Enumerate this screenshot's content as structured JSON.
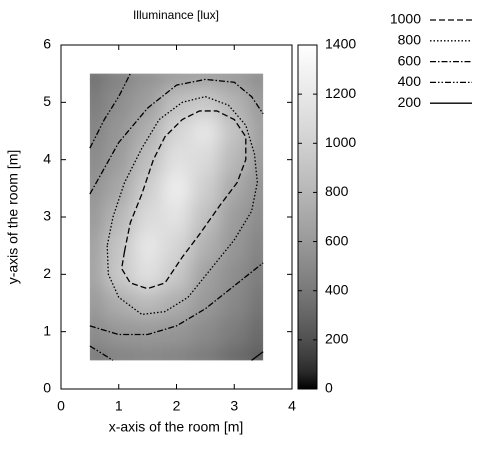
{
  "chart_data": {
    "type": "contour",
    "title": "Illuminance [lux]",
    "x_label": "x-axis of the room [m]",
    "y_label": "y-axis of the room [m]",
    "xlim": [
      0,
      4
    ],
    "xticks": [
      0,
      1,
      2,
      3,
      4
    ],
    "ylim": [
      0,
      6
    ],
    "yticks": [
      0,
      1,
      2,
      3,
      4,
      5,
      6
    ],
    "zlim": [
      0,
      1400
    ],
    "zticks": [
      0,
      200,
      400,
      600,
      800,
      1000,
      1200,
      1400
    ],
    "heatmap": {
      "x": [
        0.5,
        1,
        1.5,
        2,
        2.5,
        3,
        3.5
      ],
      "y": [
        0.5,
        1,
        1.5,
        2,
        2.5,
        3,
        3.5,
        4,
        4.5,
        5,
        5.5
      ],
      "z": [
        [
          410,
          460,
          480,
          460,
          410,
          330,
          250
        ],
        [
          510,
          580,
          600,
          580,
          510,
          420,
          320
        ],
        [
          600,
          730,
          830,
          730,
          600,
          490,
          370
        ],
        [
          650,
          930,
          1130,
          930,
          650,
          530,
          420
        ],
        [
          640,
          910,
          1190,
          1040,
          760,
          580,
          460
        ],
        [
          590,
          800,
          1080,
          1150,
          870,
          620,
          510
        ],
        [
          550,
          690,
          970,
          1250,
          980,
          700,
          550
        ],
        [
          500,
          620,
          860,
          1140,
          1080,
          810,
          600
        ],
        [
          460,
          580,
          750,
          1030,
          1190,
          890,
          630
        ],
        [
          410,
          530,
          640,
          870,
          940,
          780,
          600
        ],
        [
          360,
          470,
          560,
          630,
          650,
          610,
          530
        ]
      ]
    },
    "legend": "outside-top-right",
    "series": [
      {
        "name": "1000",
        "color": "#000000",
        "dash": "6,3",
        "x": [
          1.1,
          1.05,
          1.2,
          1.5,
          1.8,
          2.1,
          2.4,
          2.75,
          3.05,
          3.2,
          3.2,
          3.0,
          2.7,
          2.4,
          2.1,
          1.8,
          1.6,
          1.4,
          1.2,
          1.1
        ],
        "y": [
          2.4,
          2.1,
          1.85,
          1.75,
          1.85,
          2.3,
          2.7,
          3.2,
          3.6,
          4.0,
          4.4,
          4.7,
          4.85,
          4.85,
          4.7,
          4.4,
          4.0,
          3.4,
          2.9,
          2.4
        ]
      },
      {
        "name": "800",
        "color": "#000000",
        "dash": "1.5,2",
        "x": [
          0.8,
          0.82,
          1.0,
          1.4,
          1.8,
          2.2,
          2.6,
          3.0,
          3.3,
          3.4,
          3.35,
          3.2,
          2.9,
          2.5,
          2.1,
          1.7,
          1.4,
          1.1,
          0.9,
          0.8
        ],
        "y": [
          2.5,
          2.0,
          1.6,
          1.3,
          1.35,
          1.6,
          2.1,
          2.6,
          3.1,
          3.6,
          4.1,
          4.6,
          4.95,
          5.1,
          5.0,
          4.7,
          4.2,
          3.6,
          3.0,
          2.5
        ]
      },
      {
        "name": "600",
        "color": "#000000",
        "dash": "6,2,1.5,2",
        "x": [
          0.5,
          1.0,
          1.5,
          2.0,
          2.5,
          3.0,
          3.5,
          null,
          0.5,
          1.0,
          1.5,
          2.0,
          2.5,
          3.0,
          3.3,
          3.5
        ],
        "y": [
          1.1,
          0.95,
          0.95,
          1.1,
          1.4,
          1.8,
          2.2,
          null,
          3.4,
          4.3,
          4.9,
          5.3,
          5.4,
          5.35,
          5.1,
          4.8
        ]
      },
      {
        "name": "400",
        "color": "#000000",
        "dash": "6,2,1.5,2,1.5,2",
        "x": [
          0.5,
          0.9,
          null,
          0.5,
          0.75,
          1.0,
          1.2
        ],
        "y": [
          0.75,
          0.5,
          null,
          4.2,
          4.7,
          5.1,
          5.5
        ]
      },
      {
        "name": "200",
        "color": "#000000",
        "dash": "none",
        "x": [
          3.3,
          3.5
        ],
        "y": [
          0.5,
          0.65
        ]
      }
    ]
  }
}
